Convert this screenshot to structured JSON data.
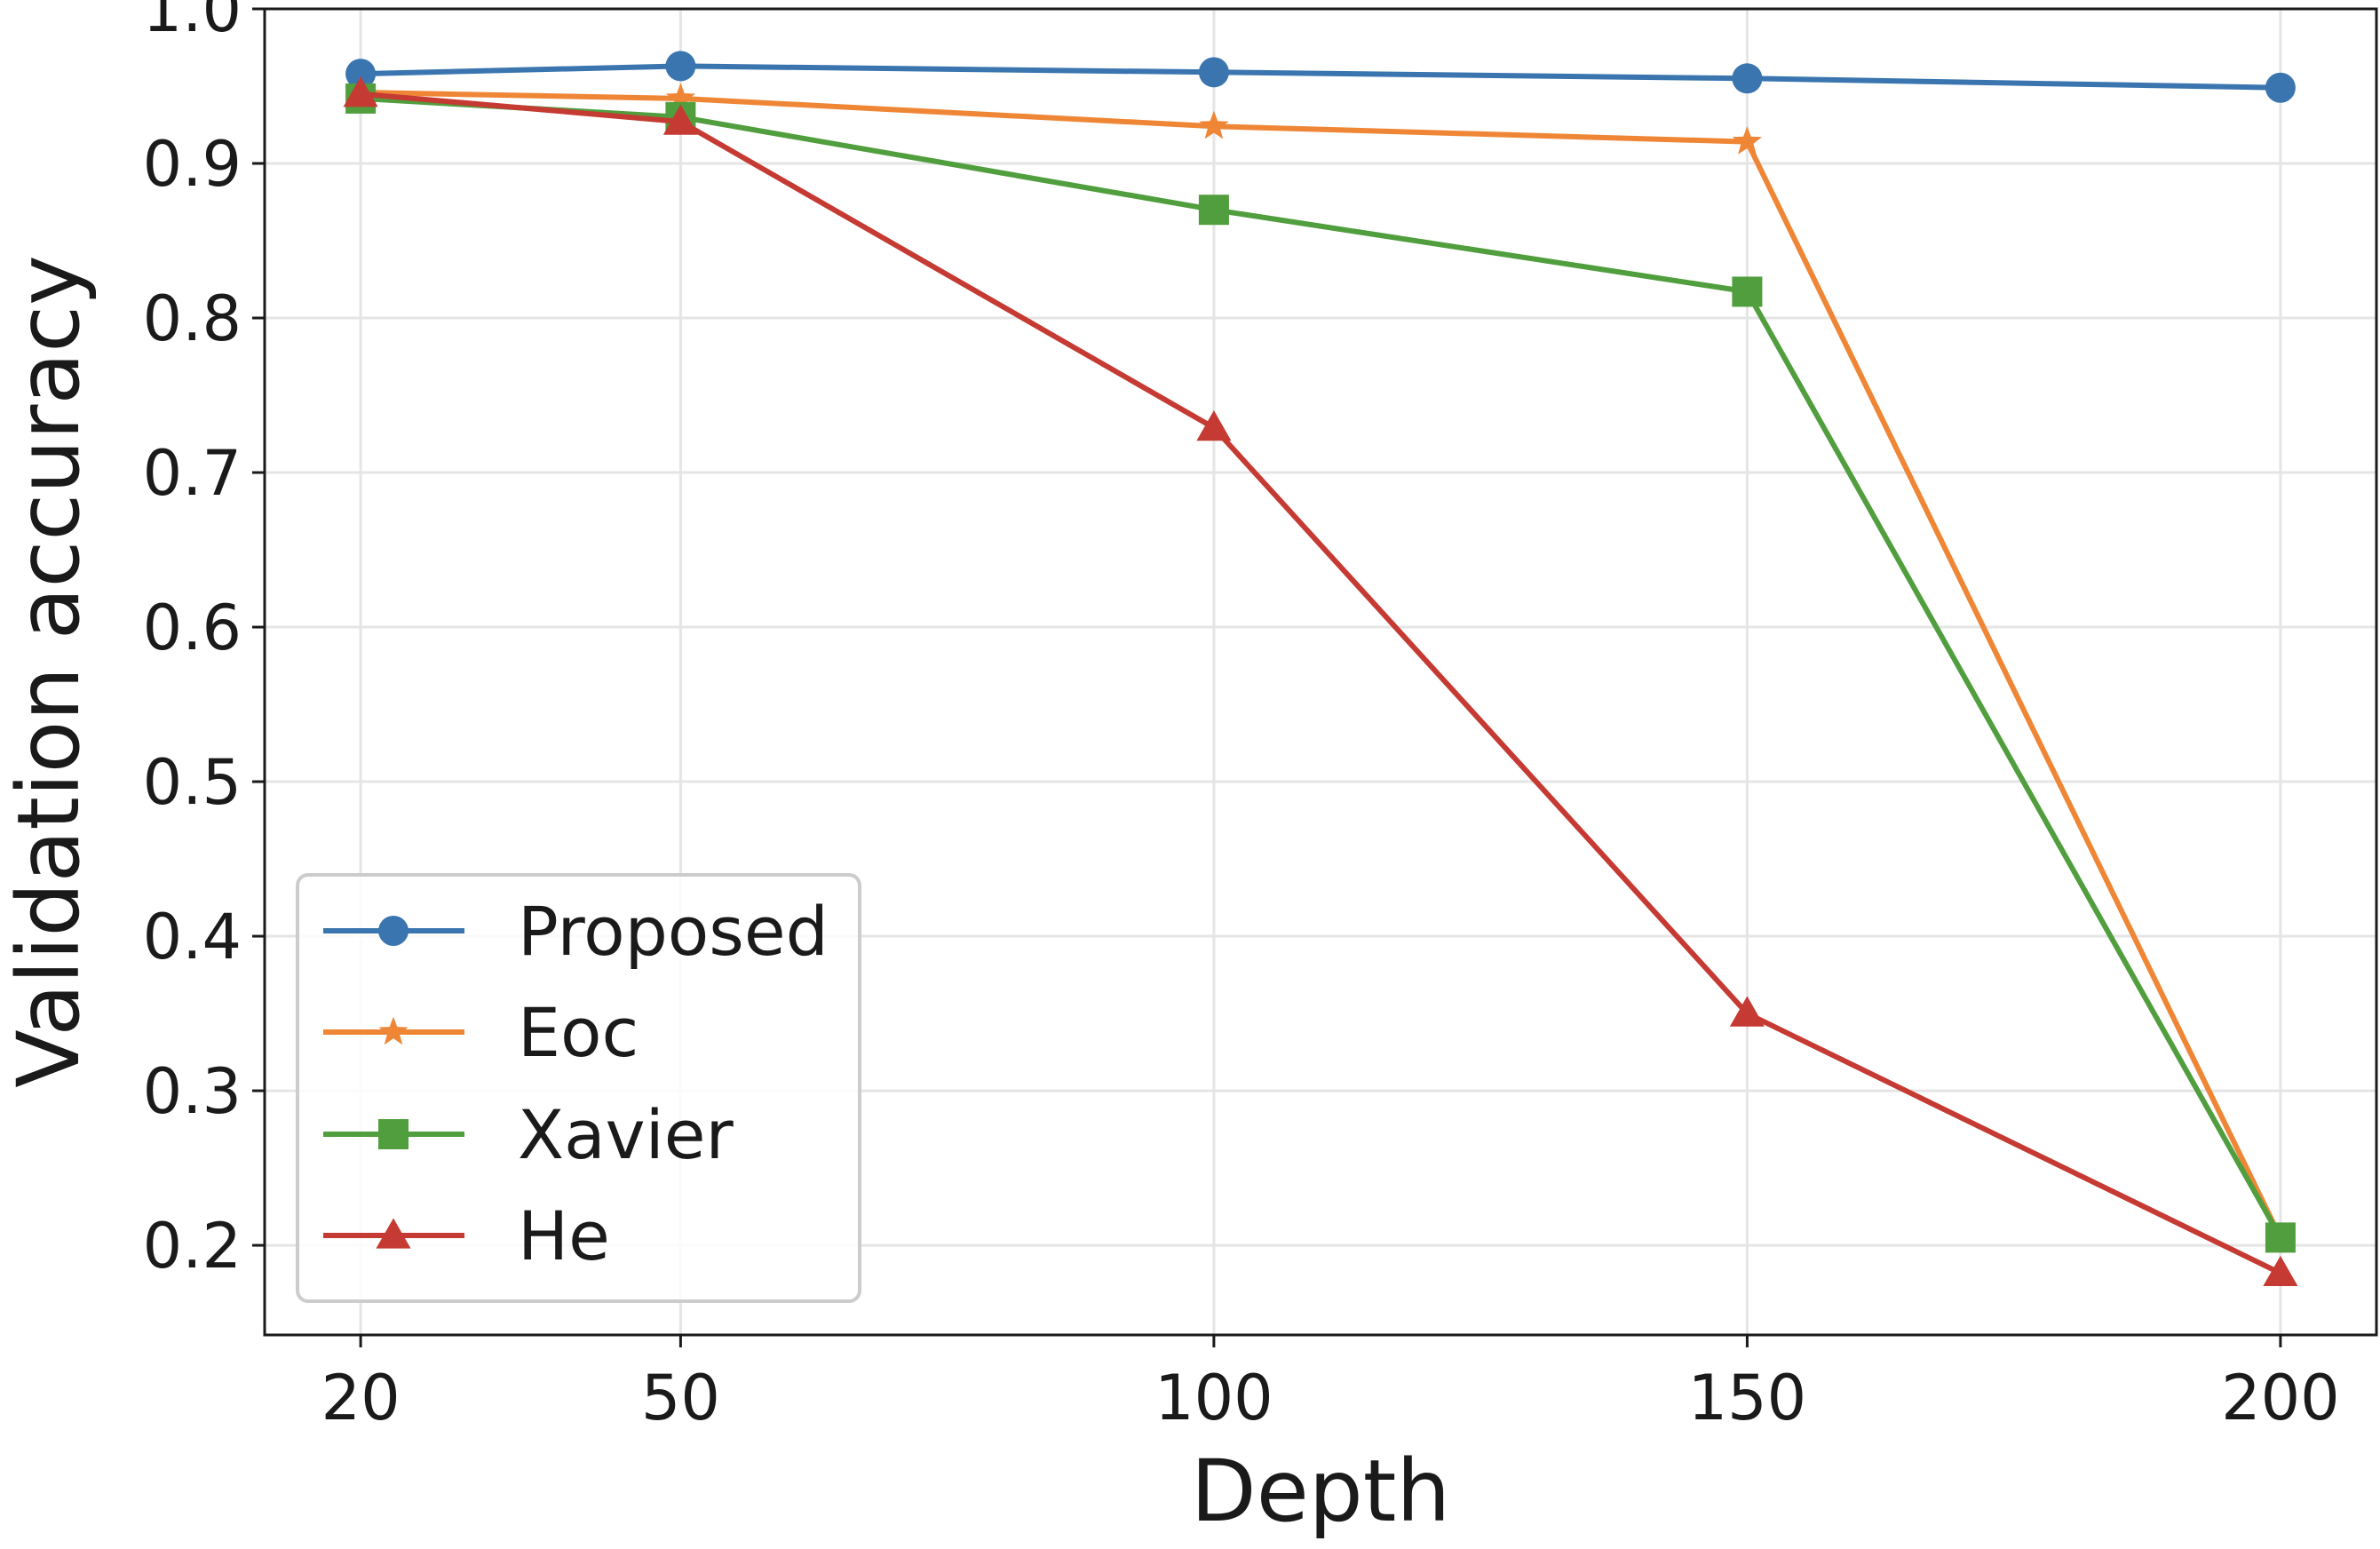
{
  "chart_data": {
    "type": "line",
    "title": "",
    "xlabel": "Depth",
    "ylabel": "Validation accuracy",
    "x": [
      20,
      50,
      100,
      150,
      200
    ],
    "x_tick_labels": [
      "20",
      "50",
      "100",
      "150",
      "200"
    ],
    "y_ticks": [
      0.2,
      0.3,
      0.4,
      0.5,
      0.6,
      0.7,
      0.8,
      0.9,
      1.0
    ],
    "y_tick_labels": [
      "0.2",
      "0.3",
      "0.4",
      "0.5",
      "0.6",
      "0.7",
      "0.8",
      "0.9",
      "1.0"
    ],
    "xlim": [
      11,
      209
    ],
    "ylim": [
      0.142,
      1.0
    ],
    "grid": true,
    "legend_position": "lower-left",
    "series": [
      {
        "name": "Proposed",
        "color": "#3b75af",
        "marker": "circle",
        "values": [
          0.958,
          0.963,
          0.959,
          0.955,
          0.949
        ]
      },
      {
        "name": "Eoc",
        "color": "#ef8636",
        "marker": "star",
        "values": [
          0.946,
          0.942,
          0.924,
          0.914,
          0.205
        ]
      },
      {
        "name": "Xavier",
        "color": "#519e3e",
        "marker": "square",
        "values": [
          0.942,
          0.93,
          0.87,
          0.817,
          0.205
        ]
      },
      {
        "name": "He",
        "color": "#c53a32",
        "marker": "triangle",
        "values": [
          0.945,
          0.927,
          0.729,
          0.35,
          0.182
        ]
      }
    ]
  }
}
